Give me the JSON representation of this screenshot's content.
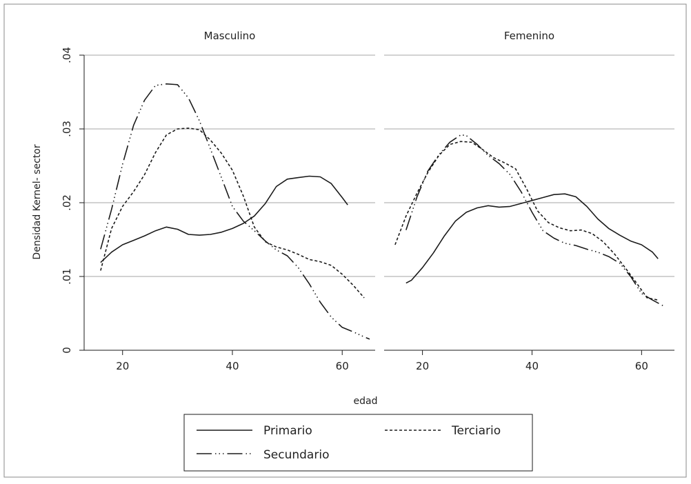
{
  "chart_data": {
    "type": "line",
    "ylabel": "Densidad Kernel- sector",
    "xlabel": "edad",
    "ylim": [
      0,
      0.04
    ],
    "yticks": [
      0,
      0.01,
      0.02,
      0.03,
      0.04
    ],
    "ytick_labels": [
      "0",
      ".01",
      ".02",
      ".03",
      ".04"
    ],
    "xticks": [
      20,
      40,
      60
    ],
    "xtick_labels": [
      "20",
      "40",
      "60"
    ],
    "xlim": [
      13,
      66
    ],
    "grid": "horizontal",
    "legend_position": "bottom",
    "legend": [
      {
        "key": "primario",
        "label": "Primario"
      },
      {
        "key": "terciario",
        "label": "Terciario"
      },
      {
        "key": "secundario",
        "label": "Secundario"
      }
    ],
    "panels": [
      {
        "title": "Masculino",
        "series": [
          {
            "key": "primario",
            "name": "Primario",
            "points": [
              [
                16,
                0.0119
              ],
              [
                18,
                0.0133
              ],
              [
                20,
                0.0143
              ],
              [
                22,
                0.0149
              ],
              [
                24,
                0.0155
              ],
              [
                26,
                0.0162
              ],
              [
                28,
                0.0167
              ],
              [
                30,
                0.0164
              ],
              [
                32,
                0.0157
              ],
              [
                34,
                0.0156
              ],
              [
                36,
                0.0157
              ],
              [
                38,
                0.016
              ],
              [
                40,
                0.0165
              ],
              [
                42,
                0.0172
              ],
              [
                44,
                0.0182
              ],
              [
                46,
                0.0199
              ],
              [
                48,
                0.0222
              ],
              [
                50,
                0.0232
              ],
              [
                52,
                0.0234
              ],
              [
                54,
                0.0236
              ],
              [
                56,
                0.0235
              ],
              [
                58,
                0.0226
              ],
              [
                60,
                0.0207
              ],
              [
                61,
                0.0197
              ]
            ]
          },
          {
            "key": "terciario",
            "name": "Terciario",
            "points": [
              [
                16,
                0.0108
              ],
              [
                18,
                0.0165
              ],
              [
                20,
                0.0195
              ],
              [
                22,
                0.0215
              ],
              [
                24,
                0.0238
              ],
              [
                26,
                0.0268
              ],
              [
                28,
                0.0292
              ],
              [
                30,
                0.03
              ],
              [
                32,
                0.0301
              ],
              [
                34,
                0.0299
              ],
              [
                36,
                0.0285
              ],
              [
                38,
                0.0267
              ],
              [
                40,
                0.0244
              ],
              [
                42,
                0.0209
              ],
              [
                44,
                0.0167
              ],
              [
                46,
                0.0147
              ],
              [
                48,
                0.014
              ],
              [
                50,
                0.0136
              ],
              [
                52,
                0.013
              ],
              [
                54,
                0.0123
              ],
              [
                56,
                0.012
              ],
              [
                58,
                0.0115
              ],
              [
                60,
                0.0103
              ],
              [
                62,
                0.0088
              ],
              [
                64,
                0.0071
              ]
            ]
          },
          {
            "key": "secundario",
            "name": "Secundario",
            "points": [
              [
                16,
                0.0137
              ],
              [
                18,
                0.0191
              ],
              [
                20,
                0.0252
              ],
              [
                22,
                0.0305
              ],
              [
                24,
                0.0339
              ],
              [
                26,
                0.0359
              ],
              [
                28,
                0.0361
              ],
              [
                30,
                0.036
              ],
              [
                32,
                0.0342
              ],
              [
                34,
                0.0311
              ],
              [
                36,
                0.0273
              ],
              [
                38,
                0.0234
              ],
              [
                40,
                0.0195
              ],
              [
                42,
                0.0175
              ],
              [
                44,
                0.0162
              ],
              [
                46,
                0.0148
              ],
              [
                48,
                0.0136
              ],
              [
                50,
                0.0128
              ],
              [
                52,
                0.0112
              ],
              [
                54,
                0.009
              ],
              [
                56,
                0.0065
              ],
              [
                58,
                0.0045
              ],
              [
                60,
                0.0031
              ],
              [
                62,
                0.0025
              ],
              [
                64,
                0.0018
              ],
              [
                65,
                0.0015
              ]
            ]
          }
        ]
      },
      {
        "title": "Femenino",
        "series": [
          {
            "key": "primario",
            "name": "Primario",
            "points": [
              [
                17,
                0.0091
              ],
              [
                18,
                0.0095
              ],
              [
                20,
                0.0112
              ],
              [
                22,
                0.0132
              ],
              [
                24,
                0.0155
              ],
              [
                26,
                0.0175
              ],
              [
                28,
                0.0187
              ],
              [
                30,
                0.0193
              ],
              [
                32,
                0.0196
              ],
              [
                34,
                0.0194
              ],
              [
                36,
                0.0195
              ],
              [
                38,
                0.0199
              ],
              [
                40,
                0.0203
              ],
              [
                42,
                0.0207
              ],
              [
                44,
                0.0211
              ],
              [
                46,
                0.0212
              ],
              [
                48,
                0.0208
              ],
              [
                50,
                0.0195
              ],
              [
                52,
                0.0178
              ],
              [
                54,
                0.0165
              ],
              [
                56,
                0.0156
              ],
              [
                58,
                0.0148
              ],
              [
                60,
                0.0143
              ],
              [
                62,
                0.0133
              ],
              [
                63,
                0.0124
              ]
            ]
          },
          {
            "key": "terciario",
            "name": "Terciario",
            "points": [
              [
                15,
                0.0143
              ],
              [
                17,
                0.0182
              ],
              [
                19,
                0.0213
              ],
              [
                21,
                0.0241
              ],
              [
                23,
                0.0264
              ],
              [
                25,
                0.0279
              ],
              [
                27,
                0.0283
              ],
              [
                29,
                0.0282
              ],
              [
                31,
                0.0272
              ],
              [
                33,
                0.0261
              ],
              [
                35,
                0.0254
              ],
              [
                37,
                0.0246
              ],
              [
                39,
                0.0219
              ],
              [
                41,
                0.0189
              ],
              [
                43,
                0.0173
              ],
              [
                45,
                0.0166
              ],
              [
                47,
                0.0162
              ],
              [
                49,
                0.0163
              ],
              [
                51,
                0.0158
              ],
              [
                53,
                0.0147
              ],
              [
                55,
                0.0131
              ],
              [
                57,
                0.0112
              ],
              [
                59,
                0.0092
              ],
              [
                61,
                0.0071
              ],
              [
                63,
                0.0068
              ]
            ]
          },
          {
            "key": "secundario",
            "name": "Secundario",
            "points": [
              [
                17,
                0.0163
              ],
              [
                19,
                0.0208
              ],
              [
                21,
                0.0243
              ],
              [
                23,
                0.0265
              ],
              [
                25,
                0.0282
              ],
              [
                27,
                0.0292
              ],
              [
                28,
                0.0291
              ],
              [
                30,
                0.0279
              ],
              [
                32,
                0.0264
              ],
              [
                34,
                0.0253
              ],
              [
                36,
                0.0238
              ],
              [
                38,
                0.0215
              ],
              [
                40,
                0.0187
              ],
              [
                42,
                0.0162
              ],
              [
                44,
                0.0152
              ],
              [
                46,
                0.0145
              ],
              [
                48,
                0.0142
              ],
              [
                50,
                0.0137
              ],
              [
                52,
                0.0133
              ],
              [
                54,
                0.0127
              ],
              [
                56,
                0.0118
              ],
              [
                58,
                0.01
              ],
              [
                60,
                0.0077
              ],
              [
                62,
                0.0068
              ],
              [
                64,
                0.006
              ]
            ]
          }
        ]
      }
    ]
  },
  "styles": {
    "line_color": "#1a1a1a",
    "grid_color": "#a6a6a6",
    "primario_dash": "",
    "terciario_dash": "4 3",
    "secundario_dash": "22 5 1.5 4 1.5 4 1.5 5"
  }
}
